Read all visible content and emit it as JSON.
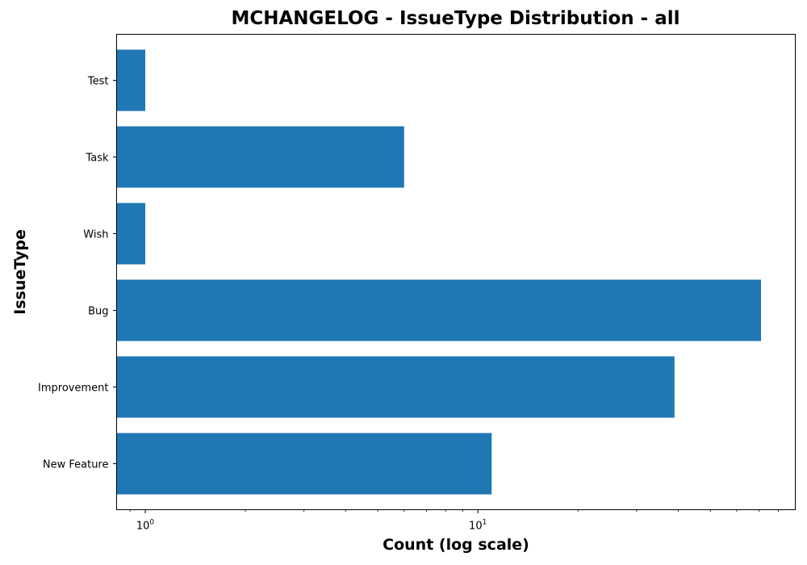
{
  "chart_data": {
    "type": "bar",
    "orientation": "horizontal",
    "title": "MCHANGELOG - IssueType Distribution - all",
    "xlabel": "Count (log scale)",
    "ylabel": "IssueType",
    "x_scale": "log",
    "xlim": [
      0.82,
      90
    ],
    "x_major_ticks": [
      {
        "value": 1,
        "base": "10",
        "exponent": "0"
      },
      {
        "value": 10,
        "base": "10",
        "exponent": "1"
      }
    ],
    "categories": [
      "New Feature",
      "Improvement",
      "Bug",
      "Wish",
      "Task",
      "Test"
    ],
    "values": [
      11,
      39,
      71,
      1,
      6,
      1
    ],
    "bar_color": "#1f77b4",
    "grid": false,
    "legend": "none"
  }
}
